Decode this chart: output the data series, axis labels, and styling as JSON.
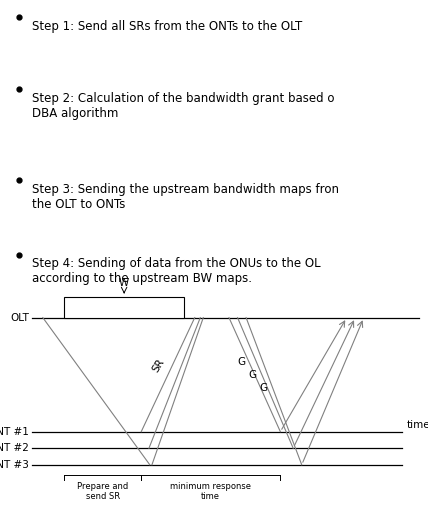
{
  "bg_color": "#ffffff",
  "line_color": "#000000",
  "diagram_line_color": "#808080",
  "text_color": "#000000",
  "font_size_bullets": 8.5,
  "font_size_diagram": 7.5,
  "font_size_small": 6.0,
  "bullet_texts": [
    "Step 1: Send all SRs from the ONTs to the OLT",
    "Step 2: Calculation of the bandwidth grant based o\nDBA algorithm",
    "Step 3: Sending the upstream bandwidth maps fron\nthe OLT to ONTs",
    "Step 4: Sending of data from the ONUs to the OL\naccording to the upstream BW maps."
  ]
}
